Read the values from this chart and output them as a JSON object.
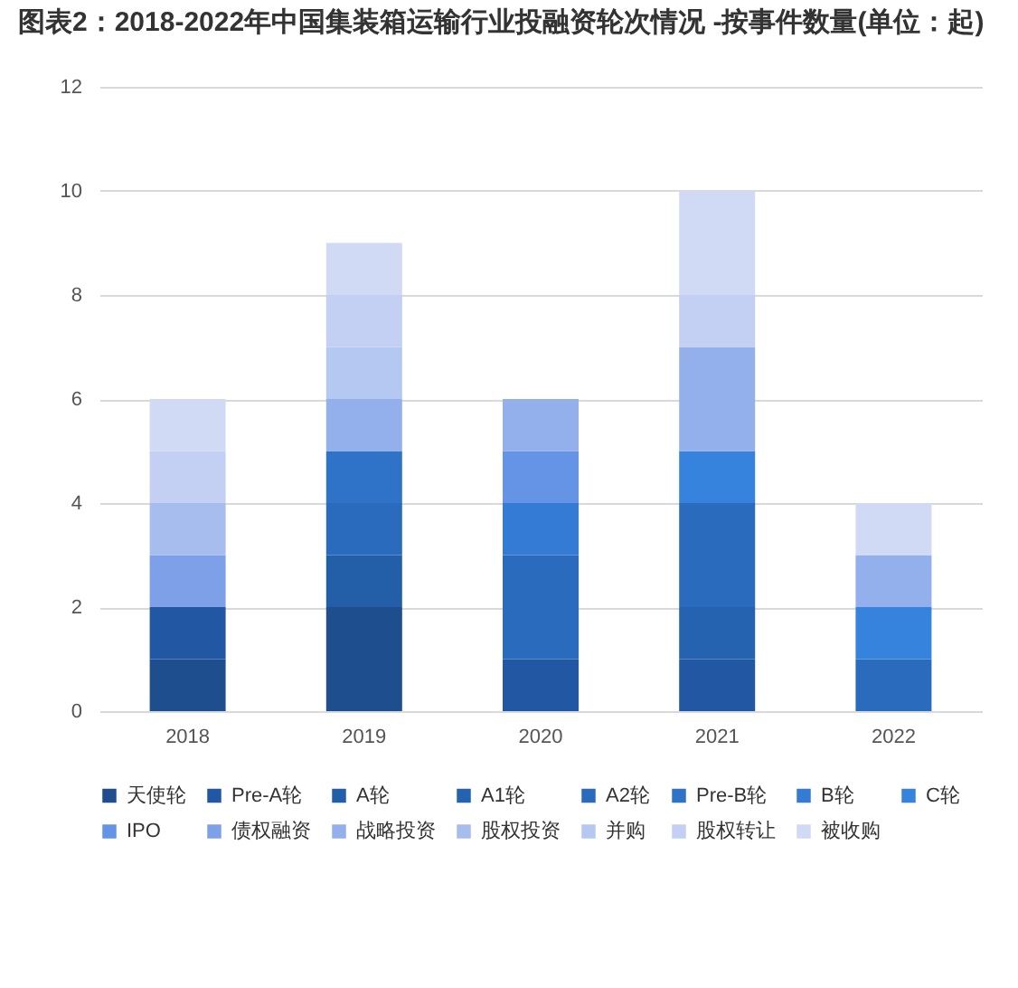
{
  "chart_data": {
    "type": "bar",
    "title": "图表2：2018-2022年中国集装箱运输行业投融资轮次情况 -按事件数量(单位：起)",
    "stacked": true,
    "categories": [
      "2018",
      "2019",
      "2020",
      "2021",
      "2022"
    ],
    "ylim": [
      0,
      12
    ],
    "yticks": [
      0,
      2,
      4,
      6,
      8,
      10,
      12
    ],
    "grid": "y",
    "legend": "bottom",
    "series": [
      {
        "name": "天使轮",
        "color": "#1f4e8f",
        "values": [
          1,
          2,
          null,
          null,
          null
        ]
      },
      {
        "name": "Pre-A轮",
        "color": "#2257a3",
        "values": [
          1,
          null,
          1,
          1,
          null
        ]
      },
      {
        "name": "A轮",
        "color": "#235ea9",
        "values": [
          null,
          1,
          null,
          null,
          null
        ]
      },
      {
        "name": "A1轮",
        "color": "#2563b0",
        "values": [
          null,
          null,
          null,
          1,
          null
        ]
      },
      {
        "name": "A2轮",
        "color": "#2a6bbd",
        "values": [
          null,
          1,
          2,
          2,
          1
        ]
      },
      {
        "name": "Pre-B轮",
        "color": "#2f73c8",
        "values": [
          null,
          1,
          null,
          null,
          null
        ]
      },
      {
        "name": "B轮",
        "color": "#347bd6",
        "values": [
          null,
          null,
          1,
          null,
          null
        ]
      },
      {
        "name": "C轮",
        "color": "#3683de",
        "values": [
          null,
          null,
          null,
          1,
          1
        ]
      },
      {
        "name": "IPO",
        "color": "#6593e6",
        "values": [
          null,
          null,
          1,
          null,
          null
        ]
      },
      {
        "name": "债权融资",
        "color": "#7ea0e8",
        "values": [
          1,
          null,
          null,
          null,
          null
        ]
      },
      {
        "name": "战略投资",
        "color": "#93afec",
        "values": [
          null,
          1,
          1,
          2,
          1
        ]
      },
      {
        "name": "股权投资",
        "color": "#a6bdee",
        "values": [
          1,
          null,
          null,
          null,
          null
        ]
      },
      {
        "name": "并购",
        "color": "#b5c8f1",
        "values": [
          null,
          1,
          null,
          null,
          null
        ]
      },
      {
        "name": "股权转让",
        "color": "#c3d0f3",
        "values": [
          1,
          1,
          null,
          1,
          null
        ]
      },
      {
        "name": "被收购",
        "color": "#d0daf4",
        "values": [
          1,
          1,
          null,
          2,
          1
        ]
      }
    ]
  }
}
